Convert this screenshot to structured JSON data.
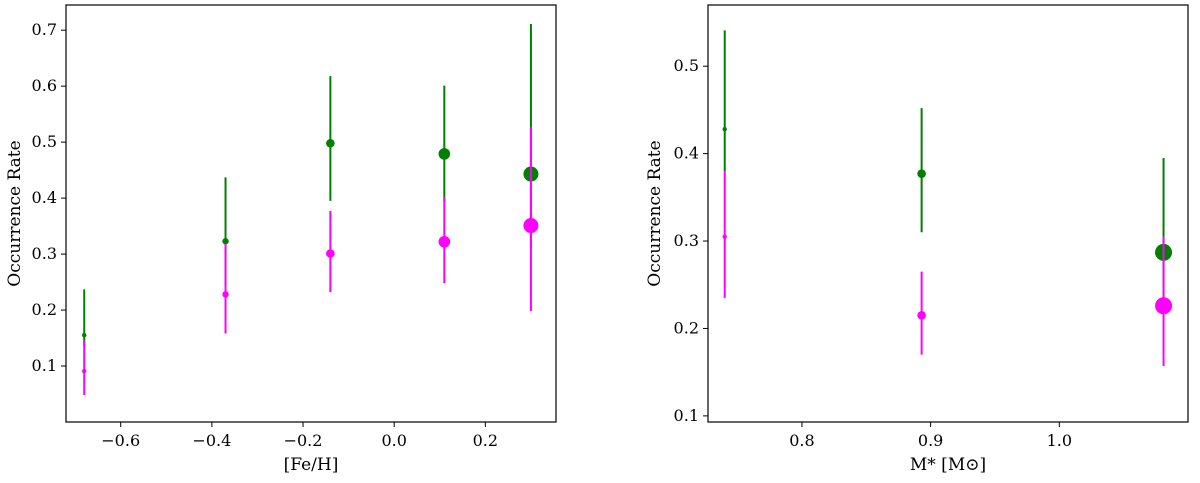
{
  "chart_data": [
    {
      "type": "scatter",
      "xlabel": "[Fe/H]",
      "ylabel": "Occurrence Rate",
      "xlim": [
        -0.72,
        0.355
      ],
      "ylim": [
        0.0,
        0.745
      ],
      "xticks": [
        -0.6,
        -0.4,
        -0.2,
        0.0,
        0.2
      ],
      "xtick_labels": [
        "−0.6",
        "−0.4",
        "−0.2",
        "0.0",
        "0.2"
      ],
      "yticks": [
        0.1,
        0.2,
        0.3,
        0.4,
        0.5,
        0.6,
        0.7
      ],
      "ytick_labels": [
        "0.1",
        "0.2",
        "0.3",
        "0.4",
        "0.5",
        "0.6",
        "0.7"
      ],
      "grid": false,
      "series": [
        {
          "color": "#008000",
          "x": [
            -0.68,
            -0.37,
            -0.14,
            0.11,
            0.3
          ],
          "y": [
            0.155,
            0.323,
            0.498,
            0.479,
            0.443
          ],
          "yerr_low": [
            0.135,
            0.243,
            0.395,
            0.395,
            0.31
          ],
          "yerr_high": [
            0.237,
            0.437,
            0.618,
            0.601,
            0.711
          ],
          "marker_size_rank": [
            1,
            2,
            3,
            4,
            5
          ]
        },
        {
          "color": "#ff00ff",
          "x": [
            -0.68,
            -0.37,
            -0.14,
            0.11,
            0.3
          ],
          "y": [
            0.091,
            0.228,
            0.301,
            0.322,
            0.351
          ],
          "yerr_low": [
            0.048,
            0.158,
            0.232,
            0.248,
            0.198
          ],
          "yerr_high": [
            0.145,
            0.318,
            0.377,
            0.402,
            0.527
          ],
          "marker_size_rank": [
            1,
            2,
            3,
            4,
            5
          ]
        }
      ]
    },
    {
      "type": "scatter",
      "xlabel": "M* [M⊙]",
      "ylabel": "Occurrence Rate",
      "xlim": [
        0.727,
        1.1
      ],
      "ylim": [
        0.093,
        0.57
      ],
      "xticks": [
        0.8,
        0.9,
        1.0
      ],
      "xtick_labels": [
        "0.8",
        "0.9",
        "1.0"
      ],
      "yticks": [
        0.1,
        0.2,
        0.3,
        0.4,
        0.5
      ],
      "ytick_labels": [
        "0.1",
        "0.2",
        "0.3",
        "0.4",
        "0.5"
      ],
      "grid": false,
      "series": [
        {
          "color": "#008000",
          "x": [
            0.74,
            0.893,
            1.081
          ],
          "y": [
            0.428,
            0.377,
            0.287
          ],
          "yerr_low": [
            0.38,
            0.31,
            0.225
          ],
          "yerr_high": [
            0.541,
            0.452,
            0.395
          ],
          "marker_size_rank": [
            1,
            3,
            5
          ]
        },
        {
          "color": "#ff00ff",
          "x": [
            0.74,
            0.893,
            1.081
          ],
          "y": [
            0.305,
            0.215,
            0.226
          ],
          "yerr_low": [
            0.235,
            0.17,
            0.157
          ],
          "yerr_high": [
            0.38,
            0.265,
            0.305
          ],
          "marker_size_rank": [
            1,
            3,
            5
          ]
        }
      ]
    }
  ]
}
